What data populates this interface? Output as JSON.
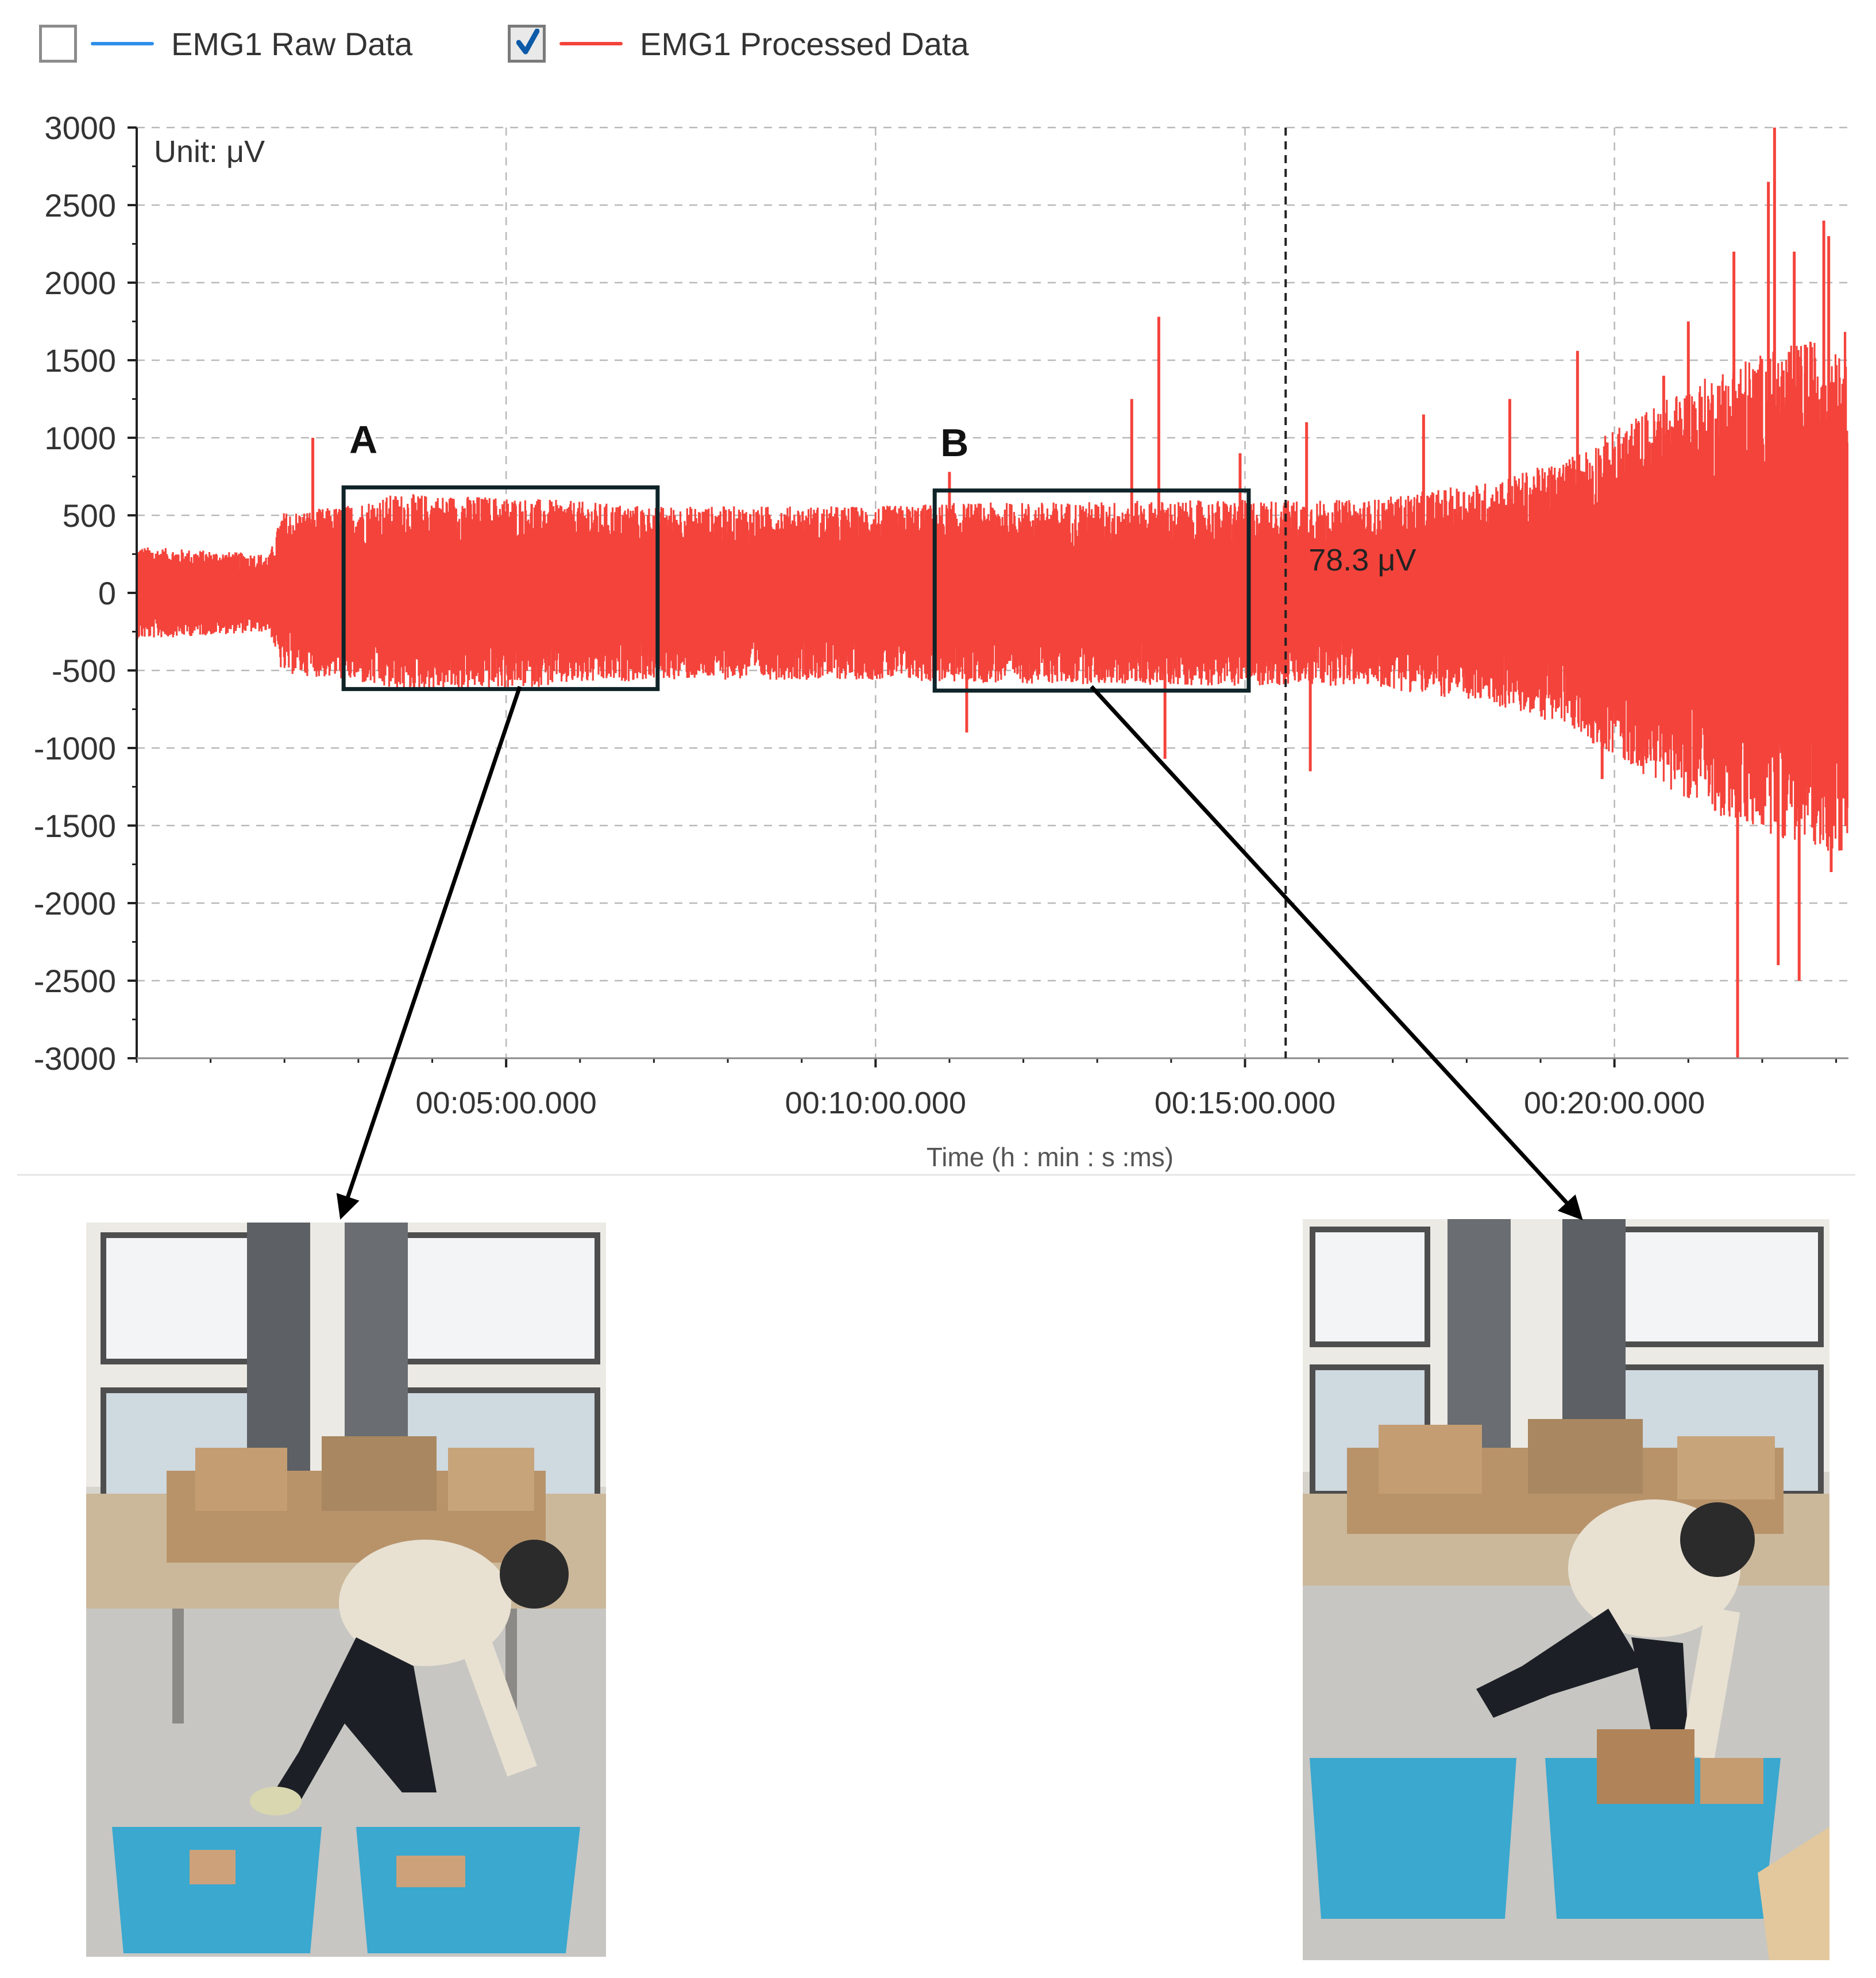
{
  "legend": {
    "items": [
      {
        "label": "EMG1 Raw Data",
        "checked": false,
        "color": "#2f8fe8"
      },
      {
        "label": "EMG1 Processed Data",
        "checked": true,
        "color": "#f4433b"
      }
    ]
  },
  "chart_data": {
    "type": "line",
    "unit_label": "Unit: μV",
    "xlabel": "Time (h : min : s :ms)",
    "ylabel": "",
    "ylim": [
      -3000,
      3000
    ],
    "yticks": [
      3000,
      2500,
      2000,
      1500,
      1000,
      500,
      0,
      -500,
      -1000,
      -1500,
      -2000,
      -2500,
      -3000
    ],
    "xlim_seconds": [
      0,
      1390
    ],
    "xticks": [
      {
        "seconds": 300,
        "label": "00:05:00.000"
      },
      {
        "seconds": 600,
        "label": "00:10:00.000"
      },
      {
        "seconds": 900,
        "label": "00:15:00.000"
      },
      {
        "seconds": 1200,
        "label": "00:20:00.000"
      }
    ],
    "grid": true,
    "cursor": {
      "seconds": 933,
      "label": "78.3 μV"
    },
    "series": [
      {
        "name": "EMG1 Processed Data",
        "color": "#f4433b",
        "amplitude_envelope": [
          {
            "t": 0,
            "amp": 300
          },
          {
            "t": 108,
            "amp": 250
          },
          {
            "t": 118,
            "amp": 520
          },
          {
            "t": 168,
            "amp": 560
          },
          {
            "t": 210,
            "amp": 640
          },
          {
            "t": 300,
            "amp": 620
          },
          {
            "t": 420,
            "amp": 560
          },
          {
            "t": 600,
            "amp": 560
          },
          {
            "t": 660,
            "amp": 580
          },
          {
            "t": 900,
            "amp": 600
          },
          {
            "t": 1000,
            "amp": 600
          },
          {
            "t": 1100,
            "amp": 720
          },
          {
            "t": 1160,
            "amp": 860
          },
          {
            "t": 1230,
            "amp": 1200
          },
          {
            "t": 1300,
            "amp": 1500
          },
          {
            "t": 1390,
            "amp": 1700
          }
        ],
        "spikes": [
          {
            "t": 143,
            "v": 1000
          },
          {
            "t": 660,
            "v": 780
          },
          {
            "t": 674,
            "v": -900
          },
          {
            "t": 808,
            "v": 1250
          },
          {
            "t": 830,
            "v": 1780
          },
          {
            "t": 835,
            "v": -1070
          },
          {
            "t": 896,
            "v": 900
          },
          {
            "t": 950,
            "v": 1100
          },
          {
            "t": 953,
            "v": -1150
          },
          {
            "t": 1045,
            "v": 1150
          },
          {
            "t": 1115,
            "v": 1250
          },
          {
            "t": 1170,
            "v": 1560
          },
          {
            "t": 1190,
            "v": -1200
          },
          {
            "t": 1240,
            "v": 1400
          },
          {
            "t": 1260,
            "v": 1750
          },
          {
            "t": 1297,
            "v": 2200
          },
          {
            "t": 1300,
            "v": -3000
          },
          {
            "t": 1325,
            "v": 2650
          },
          {
            "t": 1330,
            "v": 3000
          },
          {
            "t": 1333,
            "v": -2400
          },
          {
            "t": 1346,
            "v": 2200
          },
          {
            "t": 1350,
            "v": -2500
          },
          {
            "t": 1355,
            "v": 1600
          },
          {
            "t": 1364,
            "v": -1200
          },
          {
            "t": 1370,
            "v": 2400
          },
          {
            "t": 1374,
            "v": 2300
          },
          {
            "t": 1376,
            "v": -1800
          }
        ]
      }
    ]
  },
  "annotations": {
    "boxes": [
      {
        "label": "A",
        "t_start": 168,
        "t_end": 423,
        "v_top": 680,
        "v_bottom": -620
      },
      {
        "label": "B",
        "t_start": 648,
        "t_end": 903,
        "v_top": 660,
        "v_bottom": -630
      }
    ]
  }
}
